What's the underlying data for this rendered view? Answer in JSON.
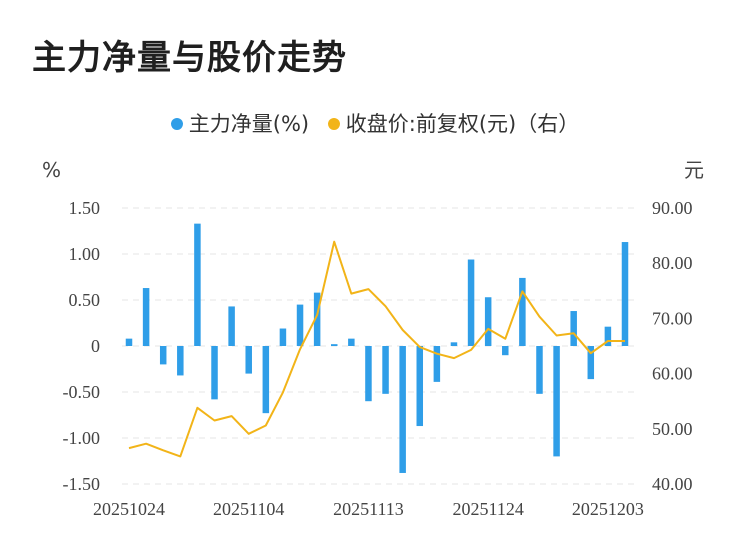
{
  "title": "主力净量与股价走势",
  "legend": {
    "items": [
      {
        "label": "主力净量(%)",
        "color": "#2f9ee8"
      },
      {
        "label": "收盘价:前复权(元)（右）",
        "color": "#f2b418"
      }
    ]
  },
  "chart_data": {
    "type": "bar+line",
    "ylabel_left": "%",
    "ylabel_right": "元",
    "ylim_left": [
      -1.5,
      1.5
    ],
    "ylim_right": [
      40,
      90
    ],
    "yticks_left": [
      "1.50",
      "1.00",
      "0.50",
      "0",
      "-0.50",
      "-1.00",
      "-1.50"
    ],
    "yticks_right": [
      "90.00",
      "80.00",
      "70.00",
      "60.00",
      "50.00",
      "40.00"
    ],
    "xtick_labels": [
      "20251024",
      "20251104",
      "20251113",
      "20251124",
      "20251203"
    ],
    "xtick_indices": [
      0,
      7,
      14,
      21,
      28
    ],
    "grid": true,
    "series": [
      {
        "name": "主力净量(%)",
        "type": "bar",
        "color": "#2f9ee8",
        "values": [
          0.08,
          0.63,
          -0.2,
          -0.32,
          1.33,
          -0.58,
          0.43,
          -0.3,
          -0.73,
          0.19,
          0.45,
          0.58,
          0.02,
          0.08,
          -0.6,
          -0.52,
          -1.38,
          -0.87,
          -0.39,
          0.04,
          0.94,
          0.53,
          -0.1,
          0.74,
          -0.52,
          -1.2,
          0.38,
          -0.36,
          0.21,
          1.13
        ]
      },
      {
        "name": "收盘价:前复权(元)（右）",
        "type": "line",
        "color": "#f2b418",
        "values": [
          46.5,
          47.3,
          46.1,
          45,
          53.8,
          51.5,
          52.3,
          49.1,
          50.6,
          56.6,
          64.4,
          70.6,
          83.9,
          74.5,
          75.3,
          72.2,
          67.9,
          64.8,
          63.6,
          62.8,
          64.3,
          68.1,
          66.3,
          74.9,
          70.3,
          66.9,
          67.3,
          63.7,
          65.9,
          65.9
        ]
      }
    ]
  }
}
